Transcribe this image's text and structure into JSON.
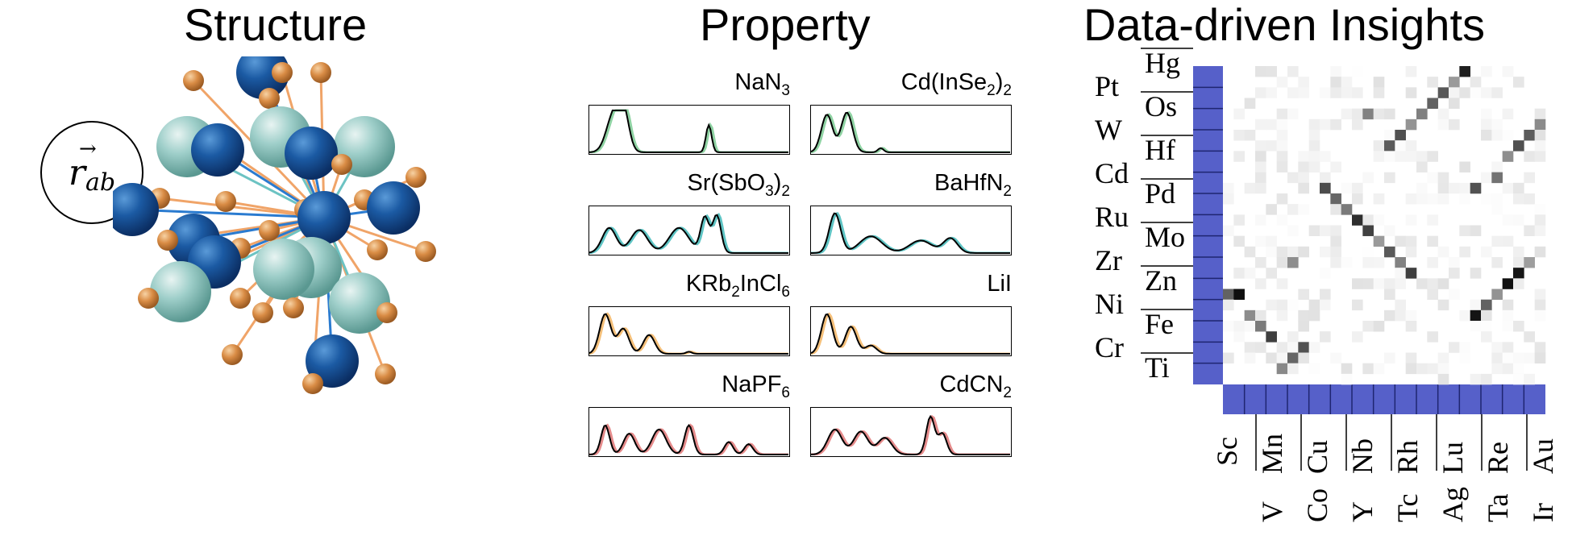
{
  "titles": {
    "structure": "Structure",
    "property": "Property",
    "insights": "Data-driven Insights"
  },
  "structure": {
    "vector_label": {
      "base": "r",
      "sub": "ab"
    }
  },
  "property_panels": [
    {
      "formula_main": [
        "NaN",
        "3",
        ""
      ],
      "color": "#8fd3a3"
    },
    {
      "formula_main": [
        "Cd(InSe",
        "2",
        ")",
        "2"
      ],
      "color": "#8fd3a3"
    },
    {
      "formula_main": [
        "Sr(SbO",
        "3",
        ")",
        "2"
      ],
      "color": "#5ec4c4"
    },
    {
      "formula_main": [
        "BaHfN",
        "2"
      ],
      "color": "#5ec4c4"
    },
    {
      "formula_main": [
        "KRb",
        "2",
        "InCl",
        "6"
      ],
      "color": "#f5c07a"
    },
    {
      "formula_main": [
        "LiI"
      ],
      "color": "#f5c07a"
    },
    {
      "formula_main": [
        "NaPF",
        "6"
      ],
      "color": "#e58b8b"
    },
    {
      "formula_main": [
        "CdCN",
        "2"
      ],
      "color": "#e58b8b"
    }
  ],
  "heatmap": {
    "accent": "#5660c9",
    "y_labels_left": [
      "Pt",
      "W",
      "Cd",
      "Ru",
      "Zr",
      "Ni",
      "Cr"
    ],
    "y_labels_right": [
      "Hg",
      "Os",
      "Hf",
      "Pd",
      "Mo",
      "Zn",
      "Fe",
      "Ti"
    ],
    "x_labels_bottom": [
      "Sc",
      "V",
      "Co",
      "Y",
      "Tc",
      "Ag",
      "Ta",
      "Ir"
    ],
    "x_labels_top": [
      "Mn",
      "Cu",
      "Nb",
      "Rh",
      "Lu",
      "Re",
      "Au"
    ]
  }
}
